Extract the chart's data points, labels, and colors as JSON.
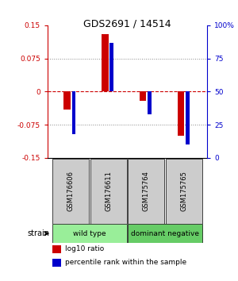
{
  "title": "GDS2691 / 14514",
  "samples": [
    "GSM176606",
    "GSM176611",
    "GSM175764",
    "GSM175765"
  ],
  "log10_ratio": [
    -0.04,
    0.13,
    -0.02,
    -0.1
  ],
  "percentile_rank_pct": [
    18,
    87,
    33,
    10
  ],
  "ylim_left": [
    -0.15,
    0.15
  ],
  "ylim_right": [
    0,
    100
  ],
  "yticks_left": [
    -0.15,
    -0.075,
    0,
    0.075,
    0.15
  ],
  "yticks_right": [
    0,
    25,
    50,
    75,
    100
  ],
  "ytick_labels_left": [
    "-0.15",
    "-0.075",
    "0",
    "0.075",
    "0.15"
  ],
  "ytick_labels_right": [
    "0",
    "25",
    "50",
    "75",
    "100%"
  ],
  "hlines_dotted": [
    0.075,
    -0.075
  ],
  "left_axis_color": "#CC0000",
  "right_axis_color": "#0000CC",
  "bar_color_red": "#CC0000",
  "bar_color_blue": "#0000CC",
  "sample_box_color": "#CCCCCC",
  "group_configs": [
    {
      "start": 0,
      "end": 1,
      "label": "wild type",
      "color": "#99EE99"
    },
    {
      "start": 2,
      "end": 3,
      "label": "dominant negative",
      "color": "#66CC66"
    }
  ],
  "strain_label": "strain",
  "legend_red": "log10 ratio",
  "legend_blue": "percentile rank within the sample"
}
